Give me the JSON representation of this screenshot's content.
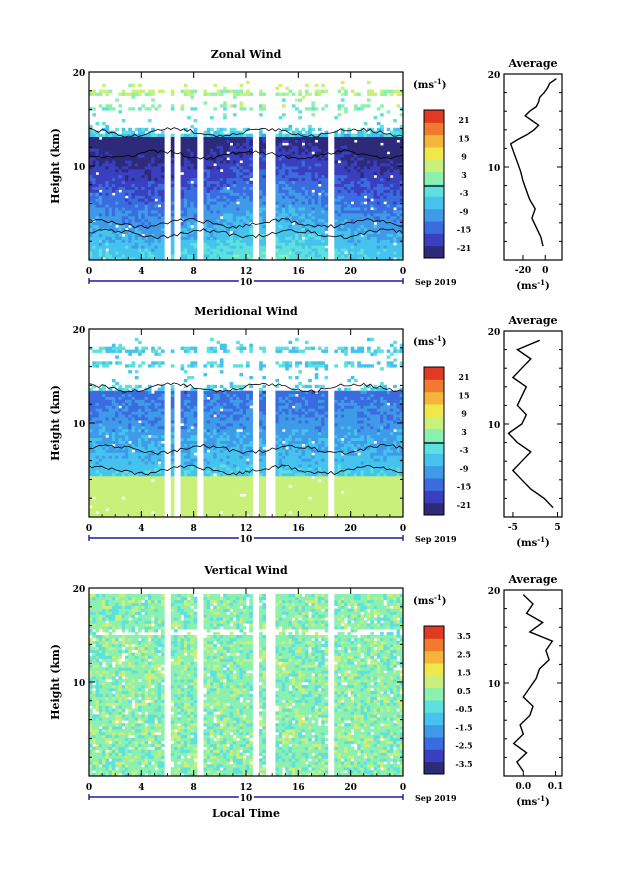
{
  "chart_data": [
    {
      "type": "heatmap",
      "title": "Zonal Wind",
      "ylabel": "Height (km)",
      "x": [
        0,
        4,
        8,
        12,
        16,
        20,
        0
      ],
      "ylim": [
        0,
        20
      ],
      "yticks": [
        10,
        20
      ],
      "date_label": "10",
      "month_label": "Sep 2019",
      "colorbar": {
        "unit": "(ms",
        "unit_exp": "-1",
        "unit_close": ")",
        "ticks": [
          "21",
          "15",
          "9",
          "3",
          "-3",
          "-9",
          "-15",
          "-21"
        ],
        "range": [
          -24,
          24
        ]
      },
      "field": "zonal",
      "gaps": [
        [
          5.8,
          6.3
        ],
        [
          6.6,
          7.0
        ],
        [
          8.3,
          8.7
        ],
        [
          12.6,
          13.0
        ],
        [
          13.6,
          14.3
        ],
        [
          18.2,
          18.7
        ]
      ],
      "average": {
        "title": "Average",
        "unit": "(ms",
        "unit_exp": "-1",
        "unit_close": ")",
        "xlim": [
          -37,
          15
        ],
        "xticks": [
          "-20",
          "0"
        ],
        "xtick_values": [
          -20,
          0
        ],
        "yticks": [
          10,
          20
        ],
        "ylim": [
          0,
          20
        ],
        "profile": {
          "height": [
            1.5,
            2.5,
            3.5,
            4.5,
            5.5,
            6.5,
            7.5,
            8.5,
            9.5,
            10.5,
            11.5,
            12.5,
            13.0,
            13.5,
            14.0,
            14.5,
            15.0,
            15.5,
            16.0,
            16.5,
            17.0,
            17.5,
            18.0,
            18.5,
            19.0,
            19.5
          ],
          "value": [
            -2,
            -4,
            -8,
            -12,
            -9,
            -14,
            -17,
            -20,
            -22,
            -25,
            -28,
            -31,
            -24,
            -16,
            -10,
            -6,
            -12,
            -18,
            -14,
            -8,
            -6,
            -5,
            -1,
            2,
            4,
            10
          ]
        }
      }
    },
    {
      "type": "heatmap",
      "title": "Meridional Wind",
      "ylabel": "Height (km)",
      "x": [
        0,
        4,
        8,
        12,
        16,
        20,
        0
      ],
      "ylim": [
        0,
        20
      ],
      "yticks": [
        10,
        20
      ],
      "date_label": "10",
      "month_label": "Sep 2019",
      "colorbar": {
        "unit": "(ms",
        "unit_exp": "-1",
        "unit_close": ")",
        "ticks": [
          "21",
          "15",
          "9",
          "3",
          "-3",
          "-9",
          "-15",
          "-21"
        ],
        "range": [
          -24,
          24
        ]
      },
      "field": "meridional",
      "gaps": [
        [
          5.8,
          6.3
        ],
        [
          6.6,
          7.0
        ],
        [
          8.3,
          8.7
        ],
        [
          12.6,
          13.0
        ],
        [
          13.6,
          14.3
        ],
        [
          18.2,
          18.7
        ]
      ],
      "average": {
        "title": "Average",
        "unit": "(ms",
        "unit_exp": "-1",
        "unit_close": ")",
        "xlim": [
          -7,
          6
        ],
        "xticks": [
          "-5",
          "5"
        ],
        "xtick_values": [
          -5,
          5
        ],
        "yticks": [
          10,
          20
        ],
        "ylim": [
          0,
          20
        ],
        "profile": {
          "height": [
            1,
            2,
            3,
            4,
            5,
            6,
            7,
            8,
            9,
            10,
            11,
            12,
            13,
            14,
            15,
            16,
            17,
            18,
            19
          ],
          "value": [
            4,
            2,
            -1,
            -3,
            -5,
            -3,
            -1,
            -4,
            -6,
            -3,
            -2,
            -4,
            -3,
            -2,
            -5,
            -3,
            -1,
            -4,
            1
          ]
        }
      }
    },
    {
      "type": "heatmap",
      "title": "Vertical Wind",
      "ylabel": "Height (km)",
      "xlabel": "Local Time",
      "x": [
        0,
        4,
        8,
        12,
        16,
        20,
        0
      ],
      "ylim": [
        0,
        20
      ],
      "yticks": [
        10,
        20
      ],
      "date_label": "10",
      "month_label": "Sep 2019",
      "colorbar": {
        "unit": "(ms",
        "unit_exp": "-1",
        "unit_close": ")",
        "ticks": [
          "3.5",
          "2.5",
          "1.5",
          "0.5",
          "-0.5",
          "-1.5",
          "-2.5",
          "-3.5"
        ],
        "range": [
          -4,
          4
        ]
      },
      "field": "vertical",
      "gaps": [
        [
          5.8,
          6.3
        ],
        [
          8.3,
          8.7
        ],
        [
          12.6,
          13.0
        ],
        [
          13.6,
          14.3
        ],
        [
          18.2,
          18.7
        ]
      ],
      "average": {
        "title": "Average",
        "unit": "(ms",
        "unit_exp": "-1",
        "unit_close": ")",
        "xlim": [
          -0.06,
          0.12
        ],
        "xticks": [
          "0.0",
          "0.1"
        ],
        "xtick_values": [
          0.0,
          0.1
        ],
        "yticks": [
          10,
          20
        ],
        "ylim": [
          0,
          20
        ],
        "profile": {
          "height": [
            0.5,
            1.5,
            2.5,
            3.5,
            4.5,
            5.5,
            6.5,
            7.5,
            8.5,
            9.5,
            10.5,
            11.5,
            12.5,
            13.5,
            14.5,
            15.5,
            16.5,
            17.5,
            18.5,
            19.5
          ],
          "value": [
            0.0,
            -0.02,
            0.01,
            -0.03,
            0.0,
            -0.01,
            0.02,
            0.03,
            0.0,
            0.02,
            0.04,
            0.05,
            0.08,
            0.07,
            0.09,
            0.02,
            0.06,
            0.01,
            0.03,
            0.0
          ]
        }
      }
    }
  ]
}
